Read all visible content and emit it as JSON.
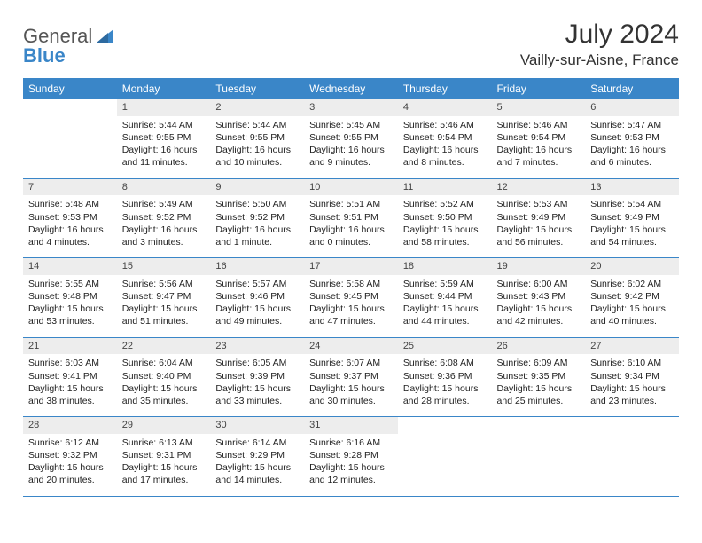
{
  "logo": {
    "word1": "General",
    "word2": "Blue"
  },
  "title": {
    "month": "July 2024",
    "location": "Vailly-sur-Aisne, France"
  },
  "colors": {
    "header_bg": "#3a86c8",
    "daynum_bg": "#ededed",
    "rule": "#3a86c8",
    "text": "#222222",
    "logo_gray": "#555555",
    "logo_blue": "#3a86c8"
  },
  "dayNames": [
    "Sunday",
    "Monday",
    "Tuesday",
    "Wednesday",
    "Thursday",
    "Friday",
    "Saturday"
  ],
  "weeks": [
    [
      {
        "empty": true
      },
      {
        "num": "1",
        "sunrise": "Sunrise: 5:44 AM",
        "sunset": "Sunset: 9:55 PM",
        "daylight1": "Daylight: 16 hours",
        "daylight2": "and 11 minutes."
      },
      {
        "num": "2",
        "sunrise": "Sunrise: 5:44 AM",
        "sunset": "Sunset: 9:55 PM",
        "daylight1": "Daylight: 16 hours",
        "daylight2": "and 10 minutes."
      },
      {
        "num": "3",
        "sunrise": "Sunrise: 5:45 AM",
        "sunset": "Sunset: 9:55 PM",
        "daylight1": "Daylight: 16 hours",
        "daylight2": "and 9 minutes."
      },
      {
        "num": "4",
        "sunrise": "Sunrise: 5:46 AM",
        "sunset": "Sunset: 9:54 PM",
        "daylight1": "Daylight: 16 hours",
        "daylight2": "and 8 minutes."
      },
      {
        "num": "5",
        "sunrise": "Sunrise: 5:46 AM",
        "sunset": "Sunset: 9:54 PM",
        "daylight1": "Daylight: 16 hours",
        "daylight2": "and 7 minutes."
      },
      {
        "num": "6",
        "sunrise": "Sunrise: 5:47 AM",
        "sunset": "Sunset: 9:53 PM",
        "daylight1": "Daylight: 16 hours",
        "daylight2": "and 6 minutes."
      }
    ],
    [
      {
        "num": "7",
        "sunrise": "Sunrise: 5:48 AM",
        "sunset": "Sunset: 9:53 PM",
        "daylight1": "Daylight: 16 hours",
        "daylight2": "and 4 minutes."
      },
      {
        "num": "8",
        "sunrise": "Sunrise: 5:49 AM",
        "sunset": "Sunset: 9:52 PM",
        "daylight1": "Daylight: 16 hours",
        "daylight2": "and 3 minutes."
      },
      {
        "num": "9",
        "sunrise": "Sunrise: 5:50 AM",
        "sunset": "Sunset: 9:52 PM",
        "daylight1": "Daylight: 16 hours",
        "daylight2": "and 1 minute."
      },
      {
        "num": "10",
        "sunrise": "Sunrise: 5:51 AM",
        "sunset": "Sunset: 9:51 PM",
        "daylight1": "Daylight: 16 hours",
        "daylight2": "and 0 minutes."
      },
      {
        "num": "11",
        "sunrise": "Sunrise: 5:52 AM",
        "sunset": "Sunset: 9:50 PM",
        "daylight1": "Daylight: 15 hours",
        "daylight2": "and 58 minutes."
      },
      {
        "num": "12",
        "sunrise": "Sunrise: 5:53 AM",
        "sunset": "Sunset: 9:49 PM",
        "daylight1": "Daylight: 15 hours",
        "daylight2": "and 56 minutes."
      },
      {
        "num": "13",
        "sunrise": "Sunrise: 5:54 AM",
        "sunset": "Sunset: 9:49 PM",
        "daylight1": "Daylight: 15 hours",
        "daylight2": "and 54 minutes."
      }
    ],
    [
      {
        "num": "14",
        "sunrise": "Sunrise: 5:55 AM",
        "sunset": "Sunset: 9:48 PM",
        "daylight1": "Daylight: 15 hours",
        "daylight2": "and 53 minutes."
      },
      {
        "num": "15",
        "sunrise": "Sunrise: 5:56 AM",
        "sunset": "Sunset: 9:47 PM",
        "daylight1": "Daylight: 15 hours",
        "daylight2": "and 51 minutes."
      },
      {
        "num": "16",
        "sunrise": "Sunrise: 5:57 AM",
        "sunset": "Sunset: 9:46 PM",
        "daylight1": "Daylight: 15 hours",
        "daylight2": "and 49 minutes."
      },
      {
        "num": "17",
        "sunrise": "Sunrise: 5:58 AM",
        "sunset": "Sunset: 9:45 PM",
        "daylight1": "Daylight: 15 hours",
        "daylight2": "and 47 minutes."
      },
      {
        "num": "18",
        "sunrise": "Sunrise: 5:59 AM",
        "sunset": "Sunset: 9:44 PM",
        "daylight1": "Daylight: 15 hours",
        "daylight2": "and 44 minutes."
      },
      {
        "num": "19",
        "sunrise": "Sunrise: 6:00 AM",
        "sunset": "Sunset: 9:43 PM",
        "daylight1": "Daylight: 15 hours",
        "daylight2": "and 42 minutes."
      },
      {
        "num": "20",
        "sunrise": "Sunrise: 6:02 AM",
        "sunset": "Sunset: 9:42 PM",
        "daylight1": "Daylight: 15 hours",
        "daylight2": "and 40 minutes."
      }
    ],
    [
      {
        "num": "21",
        "sunrise": "Sunrise: 6:03 AM",
        "sunset": "Sunset: 9:41 PM",
        "daylight1": "Daylight: 15 hours",
        "daylight2": "and 38 minutes."
      },
      {
        "num": "22",
        "sunrise": "Sunrise: 6:04 AM",
        "sunset": "Sunset: 9:40 PM",
        "daylight1": "Daylight: 15 hours",
        "daylight2": "and 35 minutes."
      },
      {
        "num": "23",
        "sunrise": "Sunrise: 6:05 AM",
        "sunset": "Sunset: 9:39 PM",
        "daylight1": "Daylight: 15 hours",
        "daylight2": "and 33 minutes."
      },
      {
        "num": "24",
        "sunrise": "Sunrise: 6:07 AM",
        "sunset": "Sunset: 9:37 PM",
        "daylight1": "Daylight: 15 hours",
        "daylight2": "and 30 minutes."
      },
      {
        "num": "25",
        "sunrise": "Sunrise: 6:08 AM",
        "sunset": "Sunset: 9:36 PM",
        "daylight1": "Daylight: 15 hours",
        "daylight2": "and 28 minutes."
      },
      {
        "num": "26",
        "sunrise": "Sunrise: 6:09 AM",
        "sunset": "Sunset: 9:35 PM",
        "daylight1": "Daylight: 15 hours",
        "daylight2": "and 25 minutes."
      },
      {
        "num": "27",
        "sunrise": "Sunrise: 6:10 AM",
        "sunset": "Sunset: 9:34 PM",
        "daylight1": "Daylight: 15 hours",
        "daylight2": "and 23 minutes."
      }
    ],
    [
      {
        "num": "28",
        "sunrise": "Sunrise: 6:12 AM",
        "sunset": "Sunset: 9:32 PM",
        "daylight1": "Daylight: 15 hours",
        "daylight2": "and 20 minutes."
      },
      {
        "num": "29",
        "sunrise": "Sunrise: 6:13 AM",
        "sunset": "Sunset: 9:31 PM",
        "daylight1": "Daylight: 15 hours",
        "daylight2": "and 17 minutes."
      },
      {
        "num": "30",
        "sunrise": "Sunrise: 6:14 AM",
        "sunset": "Sunset: 9:29 PM",
        "daylight1": "Daylight: 15 hours",
        "daylight2": "and 14 minutes."
      },
      {
        "num": "31",
        "sunrise": "Sunrise: 6:16 AM",
        "sunset": "Sunset: 9:28 PM",
        "daylight1": "Daylight: 15 hours",
        "daylight2": "and 12 minutes."
      },
      {
        "empty": true
      },
      {
        "empty": true
      },
      {
        "empty": true
      }
    ]
  ]
}
